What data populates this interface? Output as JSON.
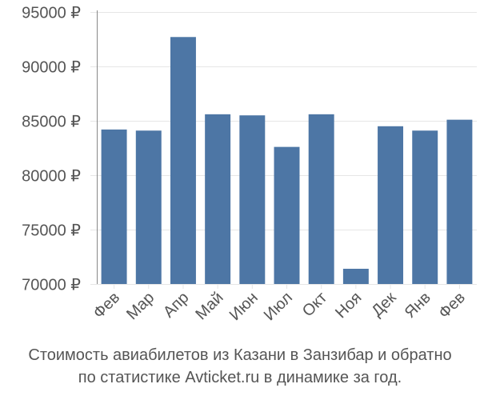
{
  "chart_data": {
    "type": "bar",
    "categories": [
      "Фев",
      "Мар",
      "Апр",
      "Май",
      "Июн",
      "Июл",
      "Окт",
      "Ноя",
      "Дек",
      "Янв",
      "Фев"
    ],
    "values": [
      84200,
      84100,
      92700,
      85600,
      85500,
      82600,
      85600,
      71400,
      84500,
      84100,
      85100
    ],
    "ylim": [
      70000,
      95000
    ],
    "y_ticks": [
      70000,
      75000,
      80000,
      85000,
      90000,
      95000
    ],
    "y_tick_labels": [
      "70000 ₽",
      "75000 ₽",
      "80000 ₽",
      "85000 ₽",
      "90000 ₽",
      "95000 ₽"
    ],
    "grid": true,
    "bar_color": "#4d76a5",
    "grid_color": "#e6e6e6",
    "axis_color": "#888888"
  },
  "caption": {
    "line1": "Стоимость авиабилетов из Казани в Занзибар и обратно",
    "line2": "по статистике Avticket.ru в динамике за год."
  }
}
